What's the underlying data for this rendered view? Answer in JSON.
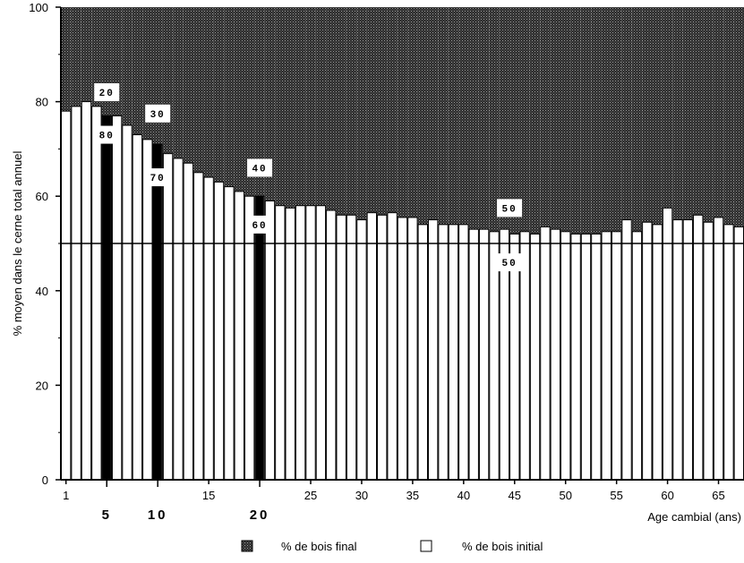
{
  "chart_data": {
    "type": "bar",
    "stacked": true,
    "ylabel": "% moyen dans le cerne total annuel",
    "xlabel": "Age cambial (ans)",
    "ylim": [
      0,
      100
    ],
    "yticks": [
      0,
      20,
      40,
      60,
      80,
      100
    ],
    "xticks": [
      1,
      5,
      10,
      15,
      20,
      25,
      30,
      35,
      40,
      45,
      50,
      55,
      60,
      65
    ],
    "bold_xticks": [
      5,
      10,
      20
    ],
    "reference_line": 50,
    "x": [
      1,
      2,
      3,
      4,
      5,
      6,
      7,
      8,
      9,
      10,
      11,
      12,
      13,
      14,
      15,
      16,
      17,
      18,
      19,
      20,
      21,
      22,
      23,
      24,
      25,
      26,
      27,
      28,
      29,
      30,
      31,
      32,
      33,
      34,
      35,
      36,
      37,
      38,
      39,
      40,
      41,
      42,
      43,
      44,
      45,
      46,
      47,
      48,
      49,
      50,
      51,
      52,
      53,
      54,
      55,
      56,
      57,
      58,
      59,
      60,
      61,
      62,
      63,
      64,
      65,
      66,
      67
    ],
    "series": [
      {
        "name": "% de bois initial",
        "color": "#ffffff",
        "values": [
          78,
          79,
          80,
          79,
          77,
          77,
          75,
          73,
          72,
          71,
          69,
          68,
          67,
          65,
          64,
          63,
          62,
          61,
          60,
          60,
          59,
          58,
          57.5,
          58,
          58,
          58,
          57,
          56,
          56,
          55,
          56.5,
          56,
          56.5,
          55.5,
          55.5,
          54,
          55,
          54,
          54,
          54,
          53,
          53,
          52.5,
          53,
          52,
          52.5,
          52,
          53.5,
          53,
          52.5,
          52,
          52,
          52,
          52.5,
          52.5,
          55,
          52.5,
          54.5,
          54,
          57.5,
          55,
          55,
          56,
          54.5,
          55.5,
          54,
          53.5
        ]
      },
      {
        "name": "% de bois final",
        "color": "#3c3c3c",
        "complement_of": "% de bois initial"
      }
    ],
    "highlighted_bars": [
      5,
      10,
      20
    ],
    "annotations": [
      {
        "x": 5,
        "y": 82,
        "text": "20"
      },
      {
        "x": 5,
        "y": 73,
        "text": "80"
      },
      {
        "x": 10,
        "y": 77.5,
        "text": "30"
      },
      {
        "x": 10,
        "y": 64,
        "text": "70"
      },
      {
        "x": 20,
        "y": 66,
        "text": "40"
      },
      {
        "x": 20,
        "y": 54,
        "text": "60"
      },
      {
        "x": 44.5,
        "y": 57.5,
        "text": "50"
      },
      {
        "x": 44.5,
        "y": 46,
        "text": "50"
      }
    ],
    "legend": {
      "placement": "bottom",
      "items": [
        {
          "label": "% de bois final",
          "swatch": "dotted-dark"
        },
        {
          "label": "% de bois initial",
          "swatch": "white"
        }
      ]
    }
  }
}
